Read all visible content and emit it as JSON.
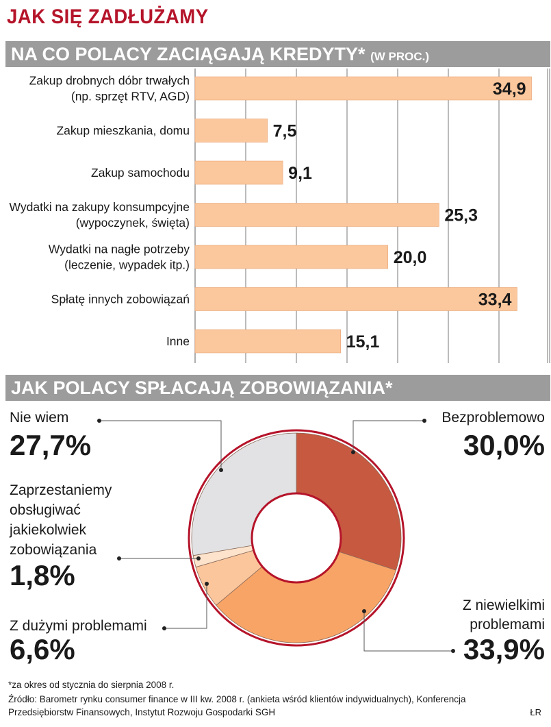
{
  "header": {
    "title": "JAK SIĘ ZADŁUŻAMY",
    "section1_title": "NA CO POLACY ZACIĄGAJĄ KREDYTY*",
    "section1_unit": "(W PROC.)",
    "section2_title": "JAK POLACY SPŁACAJĄ ZOBOWIĄZANIA*"
  },
  "chart_data": [
    {
      "type": "bar",
      "orientation": "horizontal",
      "categories": [
        [
          "Zakup drobnych dóbr trwałych",
          "(np. sprzęt RTV, AGD)"
        ],
        [
          "Zakup mieszkania, domu"
        ],
        [
          "Zakup samochodu"
        ],
        [
          "Wydatki na zakupy konsumpcyjne",
          "(wypoczynek, święta)"
        ],
        [
          "Wydatki na nagłe potrzeby",
          "(leczenie, wypadek itp.)"
        ],
        [
          "Spłatę innych zobowiązań"
        ],
        [
          "Inne"
        ]
      ],
      "values": [
        34.9,
        7.5,
        9.1,
        25.3,
        20.0,
        33.4,
        15.1
      ],
      "value_labels": [
        "34,9",
        "7,5",
        "9,1",
        "25,3",
        "20,0",
        "33,4",
        "15,1"
      ],
      "xlim": [
        0,
        35
      ],
      "grid": true,
      "colors": {
        "bar": "#fbc79c",
        "bar_border": "#e8a578",
        "grid": "#777777",
        "label": "#1a1a1a"
      }
    },
    {
      "type": "pie",
      "donut": true,
      "slices": [
        {
          "label": "Bezproblemowo",
          "value": 30.0,
          "value_label": "30,0%",
          "color": "#c75940"
        },
        {
          "label": "Z niewielkimi problemami",
          "value": 33.9,
          "value_label": "33,9%",
          "color": "#f8a466"
        },
        {
          "label": "Z dużymi problemami",
          "value": 6.6,
          "value_label": "6,6%",
          "color": "#fbc69c"
        },
        {
          "label": "Zaprzestaniemy obsługiwać jakiekolwiek zobowiązania",
          "value": 1.8,
          "value_label": "1,8%",
          "color": "#fde3cc"
        },
        {
          "label": "Nie wiem",
          "value": 27.7,
          "value_label": "27,7%",
          "color": "#e2e2e4"
        }
      ],
      "label_lines": [
        [
          "Bezproblemowo"
        ],
        [
          "Z niewielkimi",
          "problemami"
        ],
        [
          "Z dużymi problemami"
        ],
        [
          "Zaprzestaniemy",
          "obsługiwać",
          "jakiekolwiek",
          "zobowiązania"
        ],
        [
          "Nie wiem"
        ]
      ],
      "ring_color": "#b5142a"
    }
  ],
  "footer": {
    "note": "*za okres od stycznia do sierpnia 2008 r.",
    "source": "Źródło: Barometr rynku consumer finance w III kw. 2008 r. (ankieta wśród klientów indywidualnych), Konferencja Przedsiębiorstw Finansowych, Instytut Rozwoju Gospodarki SGH",
    "credit": "ŁR"
  }
}
